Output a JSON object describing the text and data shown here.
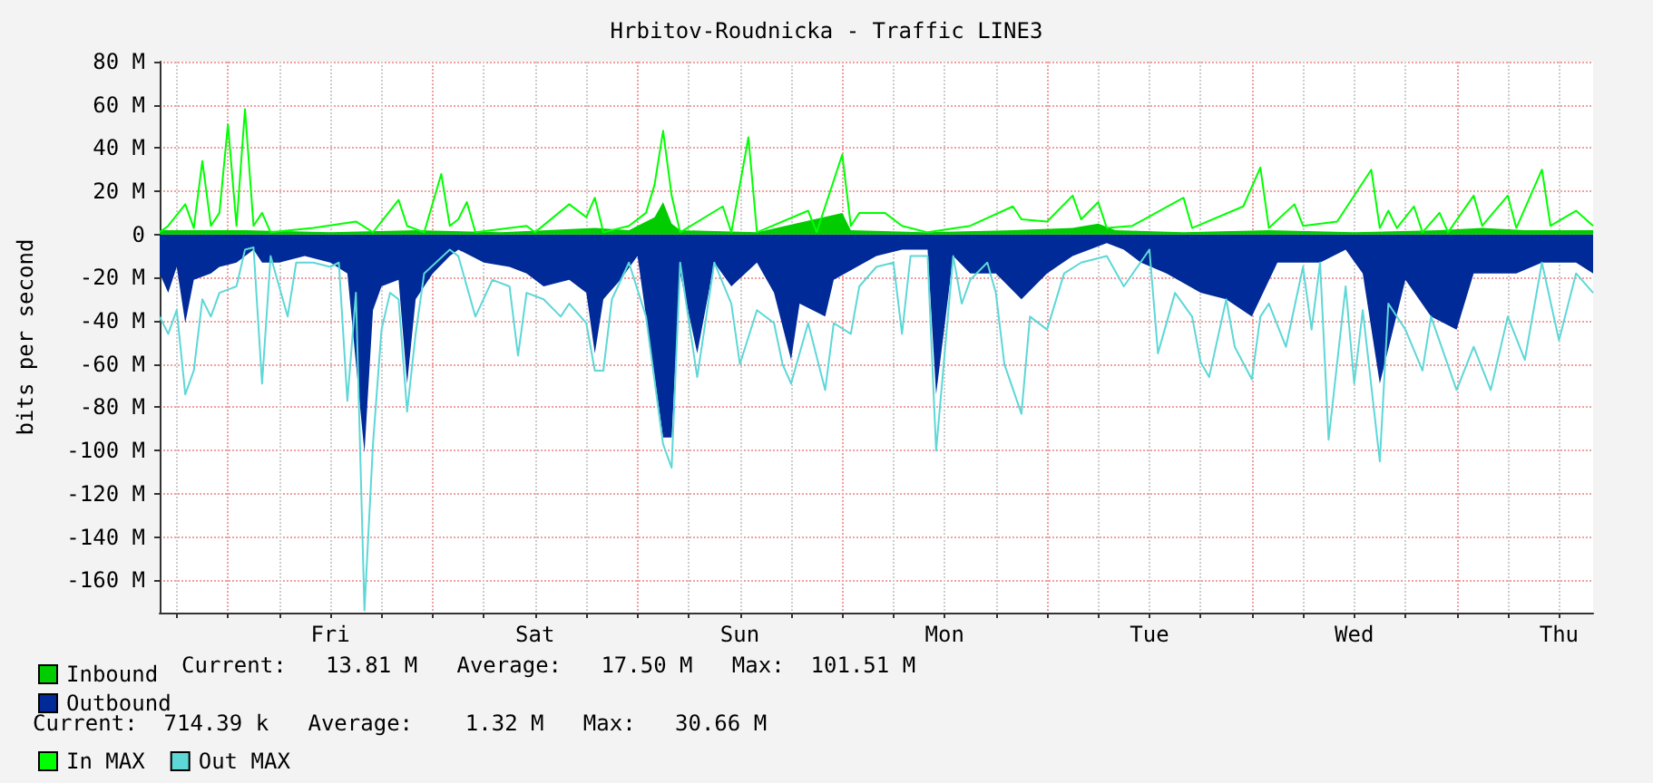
{
  "chart_data": {
    "type": "area",
    "title": "Hrbitov-Roudnicka - Traffic LINE3",
    "ylabel": "bits per second",
    "categories": [
      null,
      null,
      null,
      null,
      null,
      null,
      null,
      null,
      null,
      null,
      null,
      null,
      null,
      null,
      null,
      null,
      null,
      null,
      null,
      null,
      "Fri",
      null,
      null,
      null,
      null,
      null,
      null,
      null,
      null,
      null,
      null,
      null,
      null,
      null,
      null,
      null,
      null,
      null,
      null,
      null,
      null,
      null,
      null,
      null,
      "Sat",
      null,
      null,
      null,
      null,
      null,
      null,
      null,
      null,
      null,
      null,
      null,
      null,
      null,
      null,
      null,
      null,
      null,
      null,
      null,
      null,
      null,
      null,
      null,
      "Sun",
      null,
      null,
      null,
      null,
      null,
      null,
      null,
      null,
      null,
      null,
      null,
      null,
      null,
      null,
      null,
      null,
      null,
      null,
      null,
      null,
      null,
      null,
      null,
      "Mon",
      null,
      null,
      null,
      null,
      null,
      null,
      null,
      null,
      null,
      null,
      null,
      null,
      null,
      null,
      null,
      null,
      null,
      null,
      null,
      null,
      null,
      null,
      null,
      "Tue",
      null,
      null,
      null,
      null,
      null,
      null,
      null,
      null,
      null,
      null,
      null,
      null,
      null,
      null,
      null,
      null,
      null,
      null,
      null,
      null,
      null,
      null,
      null,
      "Wed",
      null,
      null,
      null,
      null,
      null,
      null,
      null,
      null,
      null,
      null,
      null,
      null,
      null,
      null,
      null,
      null,
      null,
      null,
      null,
      null,
      null,
      null,
      null,
      "Thu",
      null,
      null,
      null,
      null
    ],
    "ylim": [
      -175,
      80
    ],
    "yticks": [
      {
        "value": -160,
        "label": "-160 M"
      },
      {
        "value": -140,
        "label": "-140 M"
      },
      {
        "value": -120,
        "label": "-120 M"
      },
      {
        "value": -100,
        "label": "-100 M"
      },
      {
        "value": -80,
        "label": "-80 M"
      },
      {
        "value": -60,
        "label": "-60 M"
      },
      {
        "value": -40,
        "label": "-40 M"
      },
      {
        "value": -20,
        "label": "-20 M"
      },
      {
        "value": 0,
        "label": "0"
      },
      {
        "value": 20,
        "label": "20 M"
      },
      {
        "value": 40,
        "label": "40 M"
      },
      {
        "value": 60,
        "label": "60 M"
      },
      {
        "value": 80,
        "label": "80 M"
      }
    ],
    "grid": true,
    "legend": "bottom",
    "marker": "none",
    "annotations": [
      "Current:   13.81 M   Average:   17.50 M   Max:  101.51 M",
      "Current:  714.39 k   Average:    1.32 M   Max:   30.66 M"
    ],
    "series": [
      {
        "name": "Inbound",
        "type": "area",
        "color": "#00cc00",
        "values": [
          2,
          null,
          null,
          null,
          null,
          null,
          null,
          null,
          null,
          null,
          2,
          null,
          null,
          null,
          null,
          null,
          null,
          null,
          null,
          null,
          1,
          null,
          null,
          null,
          null,
          null,
          null,
          null,
          null,
          null,
          2,
          null,
          null,
          null,
          null,
          null,
          null,
          null,
          null,
          null,
          1,
          null,
          null,
          null,
          null,
          null,
          null,
          null,
          null,
          null,
          null,
          3,
          null,
          null,
          null,
          2,
          null,
          null,
          8,
          15,
          5,
          2,
          null,
          null,
          null,
          null,
          null,
          null,
          null,
          null,
          1,
          null,
          null,
          null,
          null,
          null,
          null,
          null,
          null,
          null,
          10,
          2,
          null,
          null,
          null,
          null,
          null,
          null,
          null,
          null,
          1,
          null,
          null,
          null,
          null,
          null,
          null,
          null,
          null,
          null,
          2,
          null,
          null,
          null,
          null,
          null,
          null,
          3,
          null,
          null,
          5,
          null,
          2,
          null,
          null,
          null,
          null,
          null,
          null,
          null,
          1,
          null,
          null,
          null,
          null,
          null,
          null,
          null,
          null,
          null,
          2,
          null,
          null,
          null,
          null,
          null,
          null,
          null,
          null,
          null,
          1,
          null,
          null,
          null,
          null,
          null,
          null,
          null,
          null,
          null,
          2,
          null,
          null,
          null,
          null,
          3,
          null,
          null,
          null,
          null,
          2,
          null,
          null,
          null,
          null,
          null,
          null,
          null,
          2
        ]
      },
      {
        "name": "Outbound",
        "type": "area",
        "color": "#002a97",
        "values": [
          -18,
          -27,
          -15,
          -41,
          -21,
          null,
          -18,
          -15,
          null,
          -13,
          null,
          -7,
          -13,
          null,
          -13,
          null,
          null,
          -10,
          null,
          null,
          -13,
          null,
          -18,
          null,
          -101,
          -35,
          -24,
          null,
          -21,
          -69,
          -30,
          null,
          -18,
          null,
          -10,
          -7,
          null,
          null,
          -13,
          null,
          null,
          -15,
          null,
          -18,
          null,
          -24,
          null,
          null,
          -21,
          null,
          -27,
          -55,
          -30,
          null,
          -21,
          null,
          -10,
          null,
          null,
          -94,
          -94,
          -18,
          null,
          -55,
          null,
          -13,
          null,
          -24,
          null,
          null,
          -13,
          null,
          -27,
          null,
          -58,
          -32,
          null,
          null,
          -38,
          -21,
          null,
          null,
          null,
          null,
          -10,
          null,
          null,
          -7,
          null,
          null,
          -7,
          -74,
          null,
          -10,
          null,
          -18,
          null,
          null,
          -18,
          null,
          null,
          -30,
          null,
          null,
          -18,
          null,
          null,
          -10,
          null,
          null,
          null,
          -4,
          null,
          -7,
          null,
          -13,
          null,
          null,
          -18,
          null,
          null,
          null,
          -27,
          null,
          null,
          -30,
          null,
          null,
          -38,
          null,
          null,
          -13,
          null,
          -13,
          null,
          null,
          -13,
          null,
          null,
          -7,
          null,
          -18,
          null,
          -69,
          null,
          null,
          -21,
          null,
          null,
          -38,
          null,
          null,
          -44,
          null,
          -18,
          null,
          null,
          null,
          null,
          -18,
          null,
          null,
          -13,
          null,
          null,
          null,
          -13,
          null,
          -18
        ]
      },
      {
        "name": "In MAX",
        "type": "line",
        "color": "#00ff00",
        "values": [
          1,
          4,
          null,
          14,
          3,
          34,
          4,
          10,
          51,
          4,
          58,
          4,
          10,
          1,
          null,
          null,
          null,
          null,
          3,
          null,
          null,
          null,
          null,
          6,
          null,
          1,
          null,
          null,
          16,
          4,
          null,
          1,
          null,
          28,
          4,
          7,
          15,
          1,
          null,
          null,
          null,
          null,
          null,
          4,
          1,
          null,
          null,
          null,
          14,
          null,
          8,
          17,
          1,
          null,
          null,
          4,
          null,
          10,
          23,
          48,
          18,
          1,
          null,
          null,
          null,
          null,
          13,
          1,
          null,
          45,
          1,
          null,
          null,
          null,
          null,
          null,
          11,
          1,
          null,
          null,
          37,
          4,
          10,
          null,
          null,
          10,
          null,
          4,
          null,
          null,
          1,
          null,
          null,
          null,
          null,
          4,
          null,
          null,
          null,
          null,
          13,
          7,
          null,
          null,
          6,
          null,
          null,
          18,
          7,
          null,
          15,
          3,
          null,
          null,
          4,
          null,
          null,
          null,
          null,
          null,
          17,
          3,
          null,
          null,
          null,
          null,
          null,
          13,
          null,
          31,
          3,
          null,
          null,
          14,
          4,
          null,
          null,
          null,
          6,
          null,
          null,
          null,
          30,
          3,
          11,
          3,
          null,
          13,
          1,
          null,
          10,
          1,
          null,
          null,
          18,
          4,
          null,
          null,
          18,
          3,
          null,
          null,
          30,
          4,
          null,
          null,
          11,
          null,
          4
        ]
      },
      {
        "name": "Out MAX",
        "type": "line",
        "color": "#5ed7d7",
        "values": [
          -38,
          -46,
          -35,
          -74,
          -63,
          -30,
          -38,
          -27,
          null,
          -24,
          -7,
          -6,
          -69,
          -10,
          null,
          -38,
          -13,
          null,
          -13,
          null,
          -15,
          -13,
          -77,
          -27,
          -174,
          -97,
          -44,
          -27,
          -30,
          -82,
          -46,
          -18,
          null,
          null,
          -7,
          -10,
          -24,
          -38,
          null,
          -21,
          null,
          -24,
          -56,
          -27,
          null,
          -30,
          null,
          -38,
          -32,
          null,
          -41,
          -63,
          -63,
          -30,
          null,
          -13,
          null,
          -38,
          null,
          -97,
          -108,
          -13,
          null,
          -66,
          null,
          -13,
          null,
          -32,
          -60,
          null,
          -35,
          null,
          -41,
          -60,
          -69,
          null,
          -41,
          null,
          -72,
          -41,
          null,
          -46,
          -24,
          null,
          -15,
          null,
          -13,
          -46,
          -10,
          null,
          -10,
          -100,
          null,
          -10,
          -32,
          -21,
          null,
          -13,
          -27,
          -60,
          null,
          -83,
          -38,
          null,
          -44,
          null,
          -18,
          null,
          -13,
          null,
          null,
          -10,
          null,
          -24,
          null,
          null,
          -7,
          -55,
          null,
          -27,
          null,
          -38,
          -59,
          -66,
          null,
          -30,
          -52,
          null,
          -67,
          -38,
          -32,
          null,
          -52,
          null,
          -15,
          -44,
          -13,
          -95,
          null,
          -24,
          -69,
          -35,
          null,
          -105,
          -32,
          null,
          -44,
          null,
          -63,
          -38,
          null,
          null,
          -72,
          null,
          -52,
          null,
          -72,
          null,
          -38,
          null,
          -58,
          null,
          -13,
          null,
          -49,
          null,
          -18,
          null,
          -27
        ]
      }
    ]
  }
}
